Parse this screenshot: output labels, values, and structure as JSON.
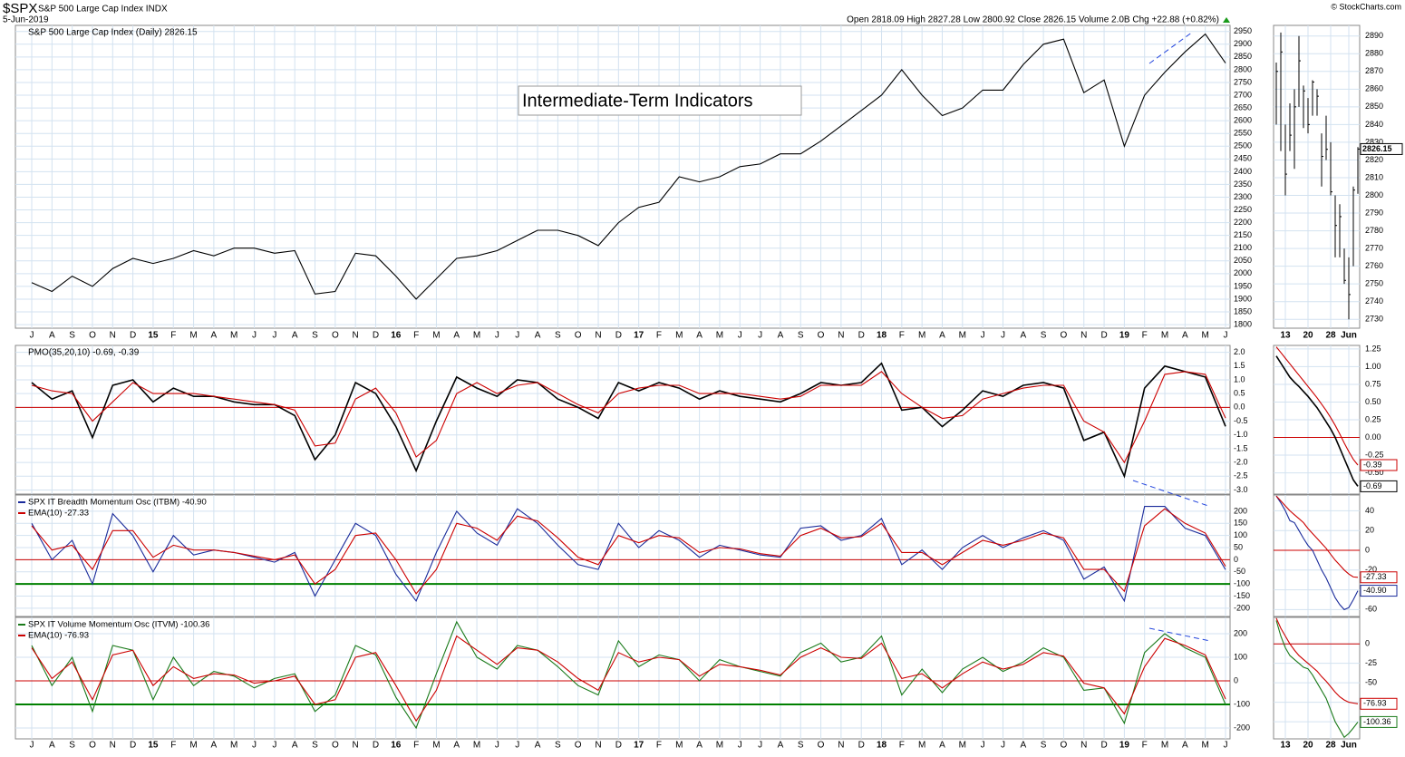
{
  "header": {
    "symbol": "$SPX",
    "name": "S&P 500 Large Cap Index INDX",
    "date": "5-Jun-2019",
    "quote": "Open 2818.09 High 2827.28 Low 2800.92 Close 2826.15 Volume 2.0B Chg +22.88 (+0.82%)",
    "source": "© StockCharts.com",
    "annotation": "Intermediate-Term Indicators"
  },
  "chart_data": [
    {
      "type": "line",
      "title": "S&P 500 Large Cap Index (Daily) 2826.15",
      "categories": [
        "J",
        "A",
        "S",
        "O",
        "N",
        "D",
        "15",
        "F",
        "M",
        "A",
        "M",
        "J",
        "J",
        "A",
        "S",
        "O",
        "N",
        "D",
        "16",
        "F",
        "M",
        "A",
        "M",
        "J",
        "J",
        "A",
        "S",
        "O",
        "N",
        "D",
        "17",
        "F",
        "M",
        "A",
        "M",
        "J",
        "J",
        "A",
        "S",
        "O",
        "N",
        "D",
        "18",
        "F",
        "M",
        "A",
        "M",
        "J",
        "J",
        "A",
        "S",
        "O",
        "N",
        "D",
        "19",
        "F",
        "M",
        "A",
        "M",
        "J"
      ],
      "series": [
        {
          "color": "#000000",
          "values": [
            1965,
            1930,
            1990,
            1950,
            2020,
            2060,
            2040,
            2060,
            2090,
            2070,
            2100,
            2100,
            2080,
            2090,
            1920,
            1930,
            2080,
            2070,
            1990,
            1900,
            1980,
            2060,
            2070,
            2090,
            2130,
            2170,
            2170,
            2150,
            2110,
            2200,
            2260,
            2280,
            2380,
            2360,
            2380,
            2420,
            2430,
            2470,
            2470,
            2520,
            2580,
            2640,
            2700,
            2800,
            2700,
            2620,
            2650,
            2720,
            2720,
            2820,
            2900,
            2920,
            2710,
            2760,
            2500,
            2700,
            2790,
            2870,
            2940,
            2826.15
          ]
        }
      ],
      "ylim": [
        1786,
        2974
      ],
      "yticks": [
        1800,
        1850,
        1900,
        1950,
        2000,
        2050,
        2100,
        2150,
        2200,
        2250,
        2300,
        2350,
        2400,
        2450,
        2500,
        2550,
        2600,
        2650,
        2700,
        2750,
        2800,
        2850,
        2900,
        2950
      ],
      "grid": true
    },
    {
      "type": "line",
      "title": "PMO(35,20,10) -0.69, -0.39",
      "series": [
        {
          "color": "#000000",
          "values": [
            0.9,
            0.3,
            0.6,
            -1.1,
            0.8,
            1.0,
            0.2,
            0.7,
            0.4,
            0.4,
            0.2,
            0.1,
            0.1,
            -0.3,
            -1.9,
            -1.0,
            0.9,
            0.5,
            -0.7,
            -2.3,
            -0.5,
            1.1,
            0.7,
            0.4,
            1.0,
            0.9,
            0.3,
            0.0,
            -0.4,
            0.9,
            0.6,
            0.9,
            0.7,
            0.3,
            0.6,
            0.4,
            0.3,
            0.2,
            0.5,
            0.9,
            0.8,
            0.9,
            1.6,
            -0.1,
            0.0,
            -0.7,
            -0.1,
            0.6,
            0.4,
            0.8,
            0.9,
            0.7,
            -1.2,
            -0.9,
            -2.5,
            0.7,
            1.5,
            1.3,
            1.1,
            -0.69
          ]
        },
        {
          "color": "#cc0000",
          "values": [
            0.8,
            0.6,
            0.5,
            -0.5,
            0.2,
            0.9,
            0.5,
            0.5,
            0.5,
            0.4,
            0.3,
            0.2,
            0.1,
            -0.1,
            -1.4,
            -1.3,
            0.3,
            0.7,
            -0.2,
            -1.8,
            -1.2,
            0.5,
            0.9,
            0.5,
            0.8,
            0.9,
            0.5,
            0.1,
            -0.2,
            0.5,
            0.7,
            0.8,
            0.8,
            0.5,
            0.5,
            0.5,
            0.4,
            0.3,
            0.4,
            0.8,
            0.8,
            0.8,
            1.3,
            0.5,
            0.0,
            -0.4,
            -0.3,
            0.3,
            0.5,
            0.7,
            0.8,
            0.8,
            -0.5,
            -0.9,
            -2.0,
            -0.5,
            1.2,
            1.3,
            1.2,
            -0.39
          ]
        }
      ],
      "ref_lines": [
        {
          "value": 0,
          "color": "#cc0000"
        }
      ],
      "ylim": [
        -3.15,
        2.25
      ],
      "yticks": [
        {
          "value": 2,
          "label": "2.0"
        },
        1.5,
        {
          "value": 1,
          "label": "1.0"
        },
        0.5,
        {
          "value": 0,
          "label": "0.0"
        },
        -0.5,
        {
          "value": -1,
          "label": "-1.0"
        },
        -1.5,
        {
          "value": -2,
          "label": "-2.0"
        },
        -2.5,
        {
          "value": -3,
          "label": "-3.0"
        }
      ],
      "grid": true
    },
    {
      "type": "line",
      "series": [
        {
          "name": "SPX IT Breadth Momentum Osc (ITBM) -40.90",
          "color": "#1a2b9b",
          "values": [
            150,
            0,
            80,
            -100,
            190,
            100,
            -50,
            100,
            20,
            40,
            30,
            10,
            -10,
            30,
            -150,
            0,
            150,
            100,
            -60,
            -170,
            30,
            200,
            110,
            60,
            210,
            150,
            60,
            -20,
            -40,
            150,
            50,
            120,
            80,
            10,
            60,
            40,
            20,
            10,
            130,
            140,
            80,
            100,
            170,
            -20,
            40,
            -40,
            50,
            100,
            50,
            90,
            120,
            80,
            -80,
            -30,
            -170,
            220,
            220,
            130,
            100,
            -40.9
          ]
        },
        {
          "name": "EMA(10) -27.33",
          "color": "#cc0000",
          "values": [
            140,
            40,
            60,
            -40,
            120,
            120,
            10,
            60,
            40,
            40,
            30,
            15,
            0,
            20,
            -100,
            -40,
            100,
            110,
            0,
            -140,
            -40,
            150,
            130,
            80,
            180,
            160,
            90,
            10,
            -20,
            100,
            70,
            100,
            90,
            30,
            50,
            45,
            25,
            15,
            100,
            130,
            90,
            95,
            150,
            30,
            30,
            -20,
            30,
            80,
            60,
            80,
            110,
            90,
            -40,
            -40,
            -130,
            140,
            210,
            150,
            110,
            -27.33
          ]
        }
      ],
      "ref_lines": [
        {
          "value": 0,
          "color": "#cc0000"
        },
        {
          "value": -100,
          "color": "#008000"
        }
      ],
      "ylim": [
        -234,
        267
      ],
      "yticks": [
        200,
        150,
        100,
        50,
        0,
        -50,
        -100,
        -150,
        -200
      ],
      "grid": true
    },
    {
      "type": "line",
      "series": [
        {
          "name": "SPX IT Volume Momentum Osc (ITVM) -100.36",
          "color": "#1a7a1a",
          "values": [
            150,
            -20,
            100,
            -130,
            150,
            130,
            -80,
            100,
            -20,
            40,
            20,
            -30,
            10,
            30,
            -130,
            -60,
            150,
            110,
            -70,
            -200,
            30,
            250,
            100,
            50,
            150,
            130,
            60,
            -20,
            -60,
            170,
            60,
            110,
            90,
            0,
            90,
            60,
            40,
            20,
            120,
            160,
            80,
            100,
            190,
            -60,
            50,
            -50,
            50,
            100,
            40,
            80,
            140,
            100,
            -40,
            -30,
            -180,
            120,
            200,
            140,
            100,
            -100.36
          ]
        },
        {
          "name": "EMA(10) -76.93",
          "color": "#cc0000",
          "values": [
            140,
            10,
            80,
            -80,
            110,
            130,
            -20,
            60,
            10,
            30,
            25,
            -10,
            0,
            20,
            -100,
            -80,
            100,
            120,
            -20,
            -170,
            -40,
            190,
            130,
            70,
            140,
            130,
            80,
            10,
            -40,
            120,
            80,
            100,
            90,
            20,
            70,
            60,
            45,
            25,
            100,
            140,
            100,
            95,
            160,
            10,
            30,
            -30,
            30,
            80,
            50,
            70,
            120,
            105,
            -10,
            -30,
            -140,
            60,
            180,
            150,
            110,
            -76.93
          ]
        }
      ],
      "ref_lines": [
        {
          "value": 0,
          "color": "#cc0000"
        },
        {
          "value": -100,
          "color": "#008000"
        }
      ],
      "ylim": [
        -246,
        269
      ],
      "yticks": [
        200,
        100,
        0,
        -100,
        -200
      ],
      "grid": true
    },
    {
      "type": "ohlc",
      "categories": [
        null,
        null,
        "13",
        null,
        null,
        null,
        null,
        "20",
        null,
        null,
        null,
        null,
        "28",
        null,
        null,
        null,
        "Jun",
        null,
        null
      ],
      "high": [
        2875,
        2892,
        2840,
        2852,
        2860,
        2890,
        2862,
        2855,
        2865,
        2860,
        2835,
        2845,
        2830,
        2800,
        2795,
        2770,
        2765,
        2805,
        2827.28
      ],
      "low": [
        2840,
        2825,
        2800,
        2825,
        2815,
        2850,
        2838,
        2835,
        2845,
        2845,
        2805,
        2820,
        2800,
        2765,
        2765,
        2750,
        2730,
        2760,
        2800.92
      ],
      "close": [
        2870,
        2881,
        2812,
        2834,
        2850,
        2876,
        2859,
        2840,
        2864,
        2856,
        2822,
        2826,
        2802,
        2783,
        2788,
        2752,
        2744,
        2803,
        2826.15
      ],
      "color": "#000000",
      "ylim": [
        2725,
        2896
      ],
      "yticks": [
        2730,
        2740,
        2750,
        2760,
        2770,
        2780,
        2790,
        2800,
        2810,
        2820,
        2830,
        2840,
        2850,
        2860,
        2870,
        2880,
        2890
      ],
      "grid": true
    },
    {
      "type": "line",
      "series": [
        {
          "color": "#000000",
          "last_label": "-0.69",
          "values": [
            1.15,
            1.05,
            0.95,
            0.85,
            0.78,
            0.72,
            0.65,
            0.58,
            0.5,
            0.42,
            0.32,
            0.22,
            0.12,
            0.0,
            -0.15,
            -0.3,
            -0.45,
            -0.6,
            -0.69
          ]
        },
        {
          "color": "#cc0000",
          "last_label": "-0.39",
          "values": [
            1.28,
            1.2,
            1.12,
            1.04,
            0.96,
            0.88,
            0.8,
            0.72,
            0.64,
            0.56,
            0.47,
            0.38,
            0.28,
            0.17,
            0.05,
            -0.08,
            -0.2,
            -0.31,
            -0.39
          ]
        }
      ],
      "ref_lines": [
        {
          "value": 0,
          "color": "#cc0000"
        }
      ],
      "ylim": [
        -0.8,
        1.3
      ],
      "yticks": [
        1.25,
        {
          "value": 1,
          "label": "1.00"
        },
        0.75,
        {
          "value": 0.5,
          "label": "0.50"
        },
        0.25,
        {
          "value": 0,
          "label": "0.00"
        },
        -0.25,
        {
          "value": -0.5,
          "label": "-0.50"
        }
      ],
      "grid": true
    },
    {
      "type": "line",
      "series": [
        {
          "color": "#1a2b9b",
          "last_label": "-40.90",
          "values": [
            55,
            48,
            40,
            30,
            28,
            20,
            12,
            5,
            0,
            -10,
            -20,
            -28,
            -38,
            -48,
            -55,
            -60,
            -58,
            -50,
            -40.9
          ]
        },
        {
          "color": "#cc0000",
          "last_label": "-27.33",
          "values": [
            55,
            50,
            45,
            40,
            36,
            32,
            28,
            22,
            17,
            12,
            7,
            2,
            -4,
            -10,
            -15,
            -20,
            -24,
            -27,
            -27.33
          ]
        }
      ],
      "ref_lines": [
        {
          "value": 0,
          "color": "#cc0000"
        }
      ],
      "ylim": [
        -67,
        56
      ],
      "yticks": [
        40,
        20,
        0,
        -20,
        -40,
        -60
      ],
      "grid": true
    },
    {
      "type": "line",
      "series": [
        {
          "color": "#1a7a1a",
          "last_label": "-100.36",
          "values": [
            30,
            10,
            -5,
            -15,
            -20,
            -25,
            -30,
            -32,
            -40,
            -50,
            -60,
            -70,
            -85,
            -100,
            -110,
            -120,
            -115,
            -108,
            -100.36
          ]
        },
        {
          "color": "#cc0000",
          "last_label": "-76.93",
          "values": [
            33,
            20,
            10,
            0,
            -8,
            -15,
            -20,
            -25,
            -30,
            -35,
            -42,
            -48,
            -55,
            -62,
            -68,
            -72,
            -75,
            -76,
            -76.93
          ]
        }
      ],
      "ref_lines": [
        {
          "value": 0,
          "color": "#cc0000"
        }
      ],
      "ylim": [
        -122,
        34
      ],
      "yticks": [
        0,
        -25,
        -50,
        -75,
        -100
      ],
      "grid": true
    }
  ]
}
